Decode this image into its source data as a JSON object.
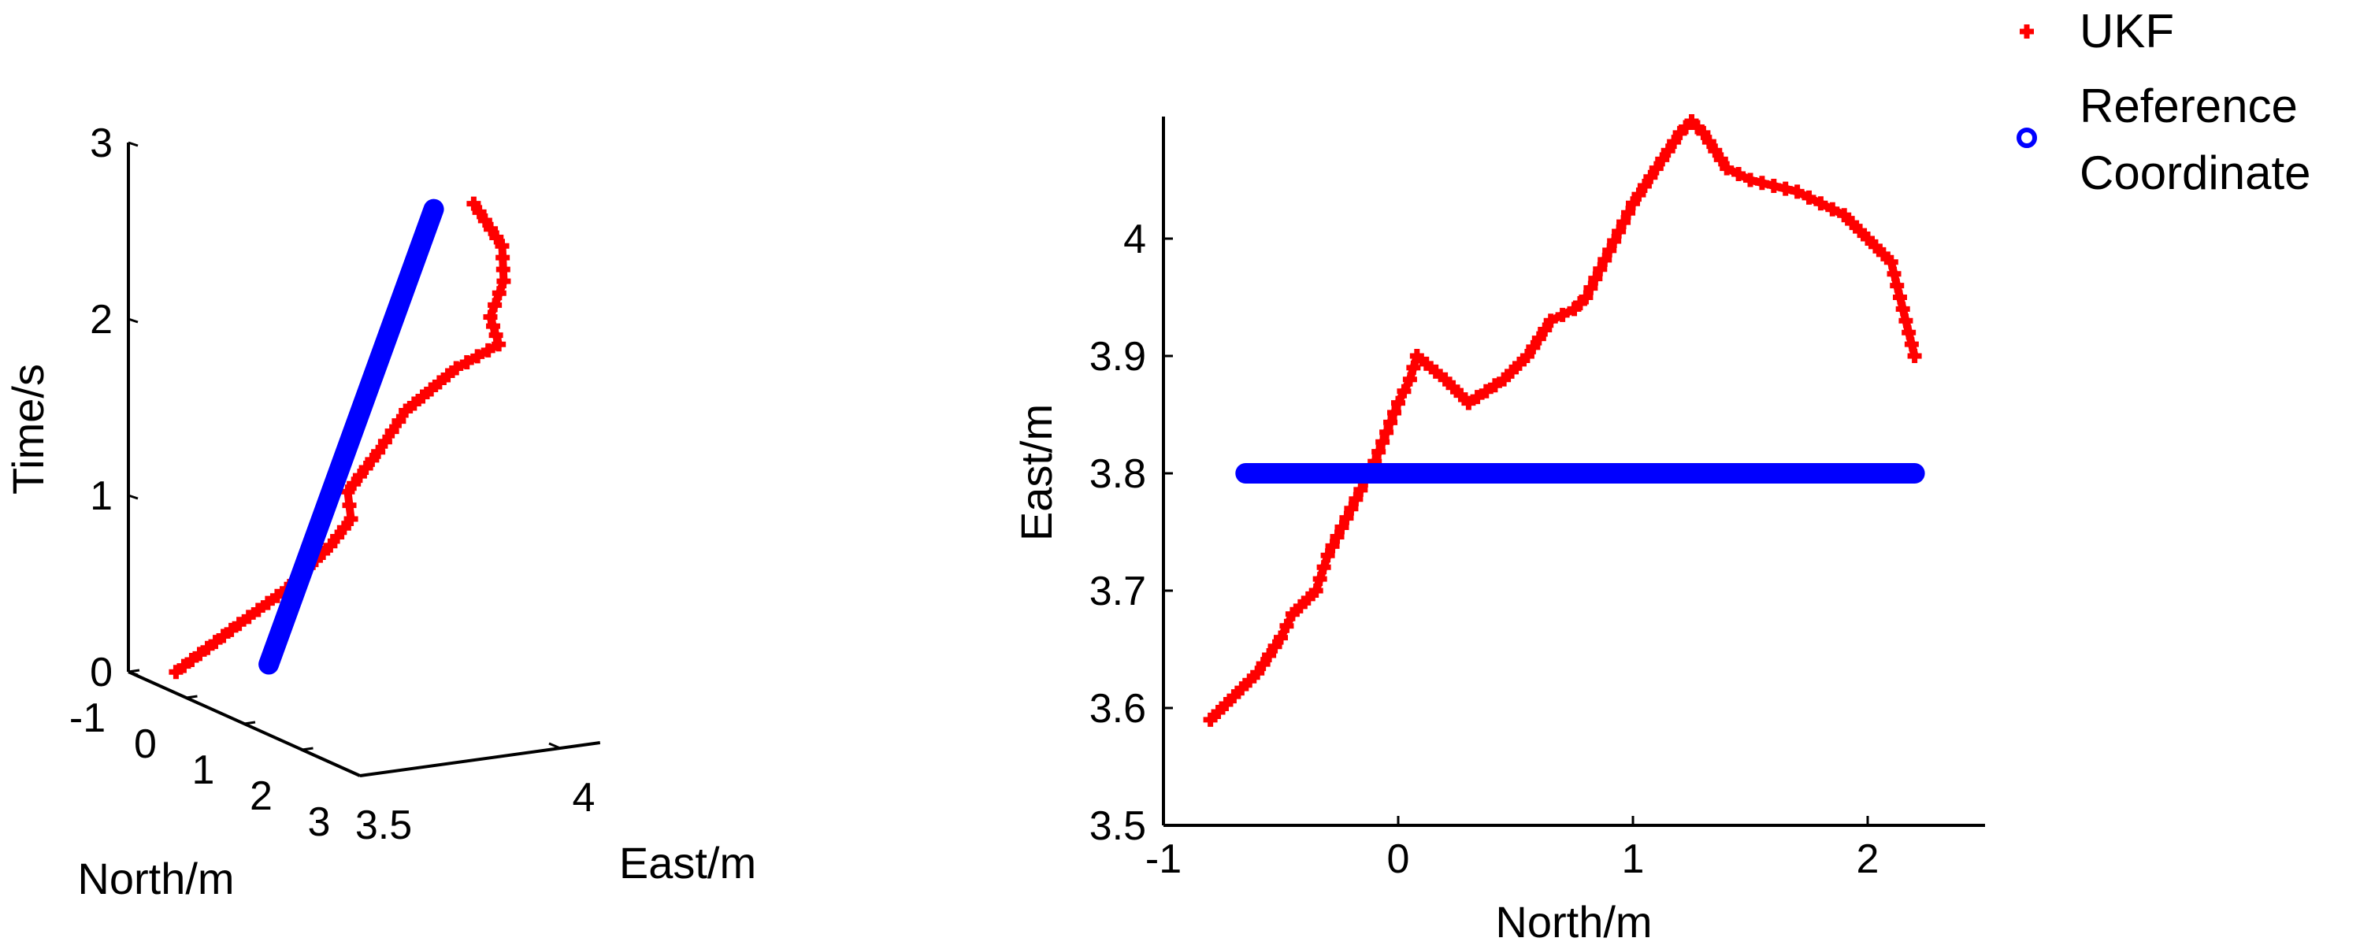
{
  "chart_data": [
    {
      "type": "line3d",
      "xlabel": "North/m",
      "ylabel": "East/m",
      "zlabel": "Time/s",
      "north_ticks": [
        "-1",
        "0",
        "1",
        "2",
        "3"
      ],
      "east_ticks": [
        "3.5",
        "4"
      ],
      "time_ticks": [
        "0",
        "1",
        "2",
        "3"
      ],
      "xlim": [
        -1,
        3
      ],
      "ylim": [
        3.5,
        4.1
      ],
      "zlim": [
        0,
        3
      ],
      "grid": false,
      "series": [
        {
          "name": "UKF",
          "color": "#ff0000",
          "marker": "plus",
          "points": [
            {
              "north": -0.8,
              "east": 3.59,
              "time": 0.0
            },
            {
              "north": -0.6,
              "east": 3.64,
              "time": 0.15
            },
            {
              "north": -0.4,
              "east": 3.69,
              "time": 0.3
            },
            {
              "north": -0.2,
              "east": 3.78,
              "time": 0.5
            },
            {
              "north": 0.0,
              "east": 3.86,
              "time": 0.75
            },
            {
              "north": 0.08,
              "east": 3.9,
              "time": 0.9
            },
            {
              "north": 0.3,
              "east": 3.86,
              "time": 1.1
            },
            {
              "north": 0.55,
              "east": 3.9,
              "time": 1.35
            },
            {
              "north": 0.75,
              "east": 3.94,
              "time": 1.6
            },
            {
              "north": 1.0,
              "east": 4.03,
              "time": 1.85
            },
            {
              "north": 1.25,
              "east": 4.1,
              "time": 2.0
            },
            {
              "north": 1.45,
              "east": 4.05,
              "time": 2.2
            },
            {
              "north": 1.75,
              "east": 4.04,
              "time": 2.45
            },
            {
              "north": 2.0,
              "east": 4.0,
              "time": 2.7
            },
            {
              "north": 2.2,
              "east": 3.9,
              "time": 3.0
            }
          ]
        },
        {
          "name": "Reference Coordinate",
          "color": "#0000ff",
          "marker": "circle",
          "points": [
            {
              "north": -0.65,
              "east": 3.8,
              "time": 0.0
            },
            {
              "north": 2.2,
              "east": 3.8,
              "time": 3.0
            }
          ]
        }
      ]
    },
    {
      "type": "line",
      "xlabel": "North/m",
      "ylabel": "East/m",
      "xlim": [
        -1,
        2.5
      ],
      "ylim": [
        3.5,
        4.1
      ],
      "x_ticks": [
        "-1",
        "0",
        "1",
        "2"
      ],
      "y_ticks": [
        "3.5",
        "3.6",
        "3.7",
        "3.8",
        "3.9",
        "4"
      ],
      "grid": false,
      "series": [
        {
          "name": "UKF",
          "color": "#ff0000",
          "marker": "plus",
          "x": [
            -0.8,
            -0.6,
            -0.5,
            -0.45,
            -0.35,
            -0.3,
            -0.2,
            -0.1,
            0.0,
            0.05,
            0.08,
            0.2,
            0.3,
            0.45,
            0.55,
            0.65,
            0.75,
            0.8,
            0.9,
            1.0,
            1.1,
            1.2,
            1.25,
            1.3,
            1.4,
            1.5,
            1.7,
            1.8,
            1.9,
            2.0,
            2.1,
            2.15,
            2.2
          ],
          "y": [
            3.59,
            3.63,
            3.66,
            3.68,
            3.7,
            3.73,
            3.77,
            3.81,
            3.86,
            3.88,
            3.9,
            3.88,
            3.86,
            3.88,
            3.9,
            3.93,
            3.94,
            3.95,
            3.99,
            4.03,
            4.06,
            4.09,
            4.1,
            4.09,
            4.06,
            4.05,
            4.04,
            4.03,
            4.02,
            4.0,
            3.98,
            3.94,
            3.9
          ]
        },
        {
          "name": "Reference Coordinate",
          "color": "#0000ff",
          "marker": "circle",
          "x": [
            -0.65,
            2.2
          ],
          "y": [
            3.8,
            3.8
          ]
        }
      ]
    }
  ],
  "legend": {
    "placement": "top-right",
    "items": [
      {
        "label_lines": [
          "UKF"
        ],
        "color": "#ff0000",
        "marker": "plus"
      },
      {
        "label_lines": [
          "Reference",
          "Coordinate"
        ],
        "color": "#0000ff",
        "marker": "circle"
      }
    ]
  }
}
